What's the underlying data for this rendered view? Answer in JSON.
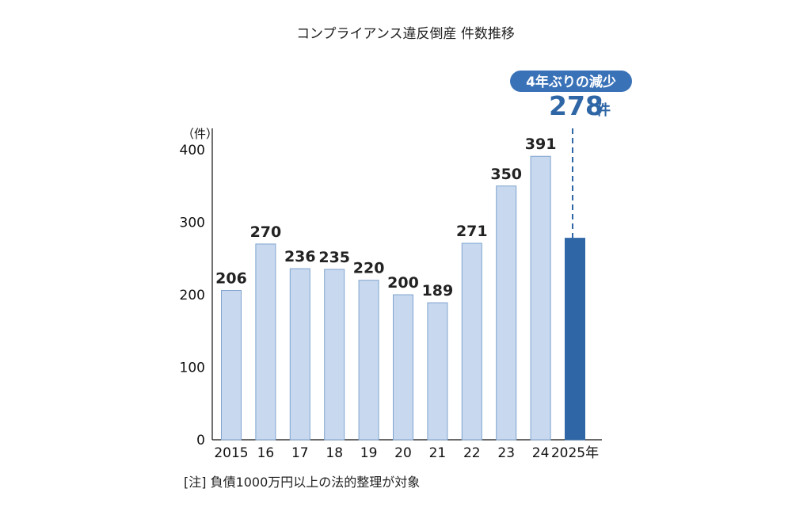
{
  "chart_data": {
    "type": "bar",
    "title": "コンプライアンス違反倒産 件数推移",
    "unit_label": "（件）",
    "categories": [
      "2015",
      "16",
      "17",
      "18",
      "19",
      "20",
      "21",
      "22",
      "23",
      "24",
      "2025年"
    ],
    "values": [
      206,
      270,
      236,
      235,
      220,
      200,
      189,
      271,
      350,
      391,
      278
    ],
    "value_labels": [
      "206",
      "270",
      "236",
      "235",
      "220",
      "200",
      "189",
      "271",
      "350",
      "391",
      ""
    ],
    "ylim": [
      0,
      400
    ],
    "y_ticks": [
      "0",
      "100",
      "200",
      "300",
      "400"
    ],
    "grid": false,
    "highlight": {
      "category": "2025年",
      "value": 278,
      "badge_text": "4年ぶりの減少",
      "value_text": "278",
      "unit_text": "件"
    },
    "note": "[注] 負債1000万円以上の法的整理が対象"
  },
  "colors": {
    "bar_fill": "#c8d9ef",
    "bar_stroke": "#7fa3cf",
    "highlight_fill": "#2f67a6",
    "badge_fill": "#3a72b8",
    "axis": "#111111",
    "text": "#222222"
  }
}
